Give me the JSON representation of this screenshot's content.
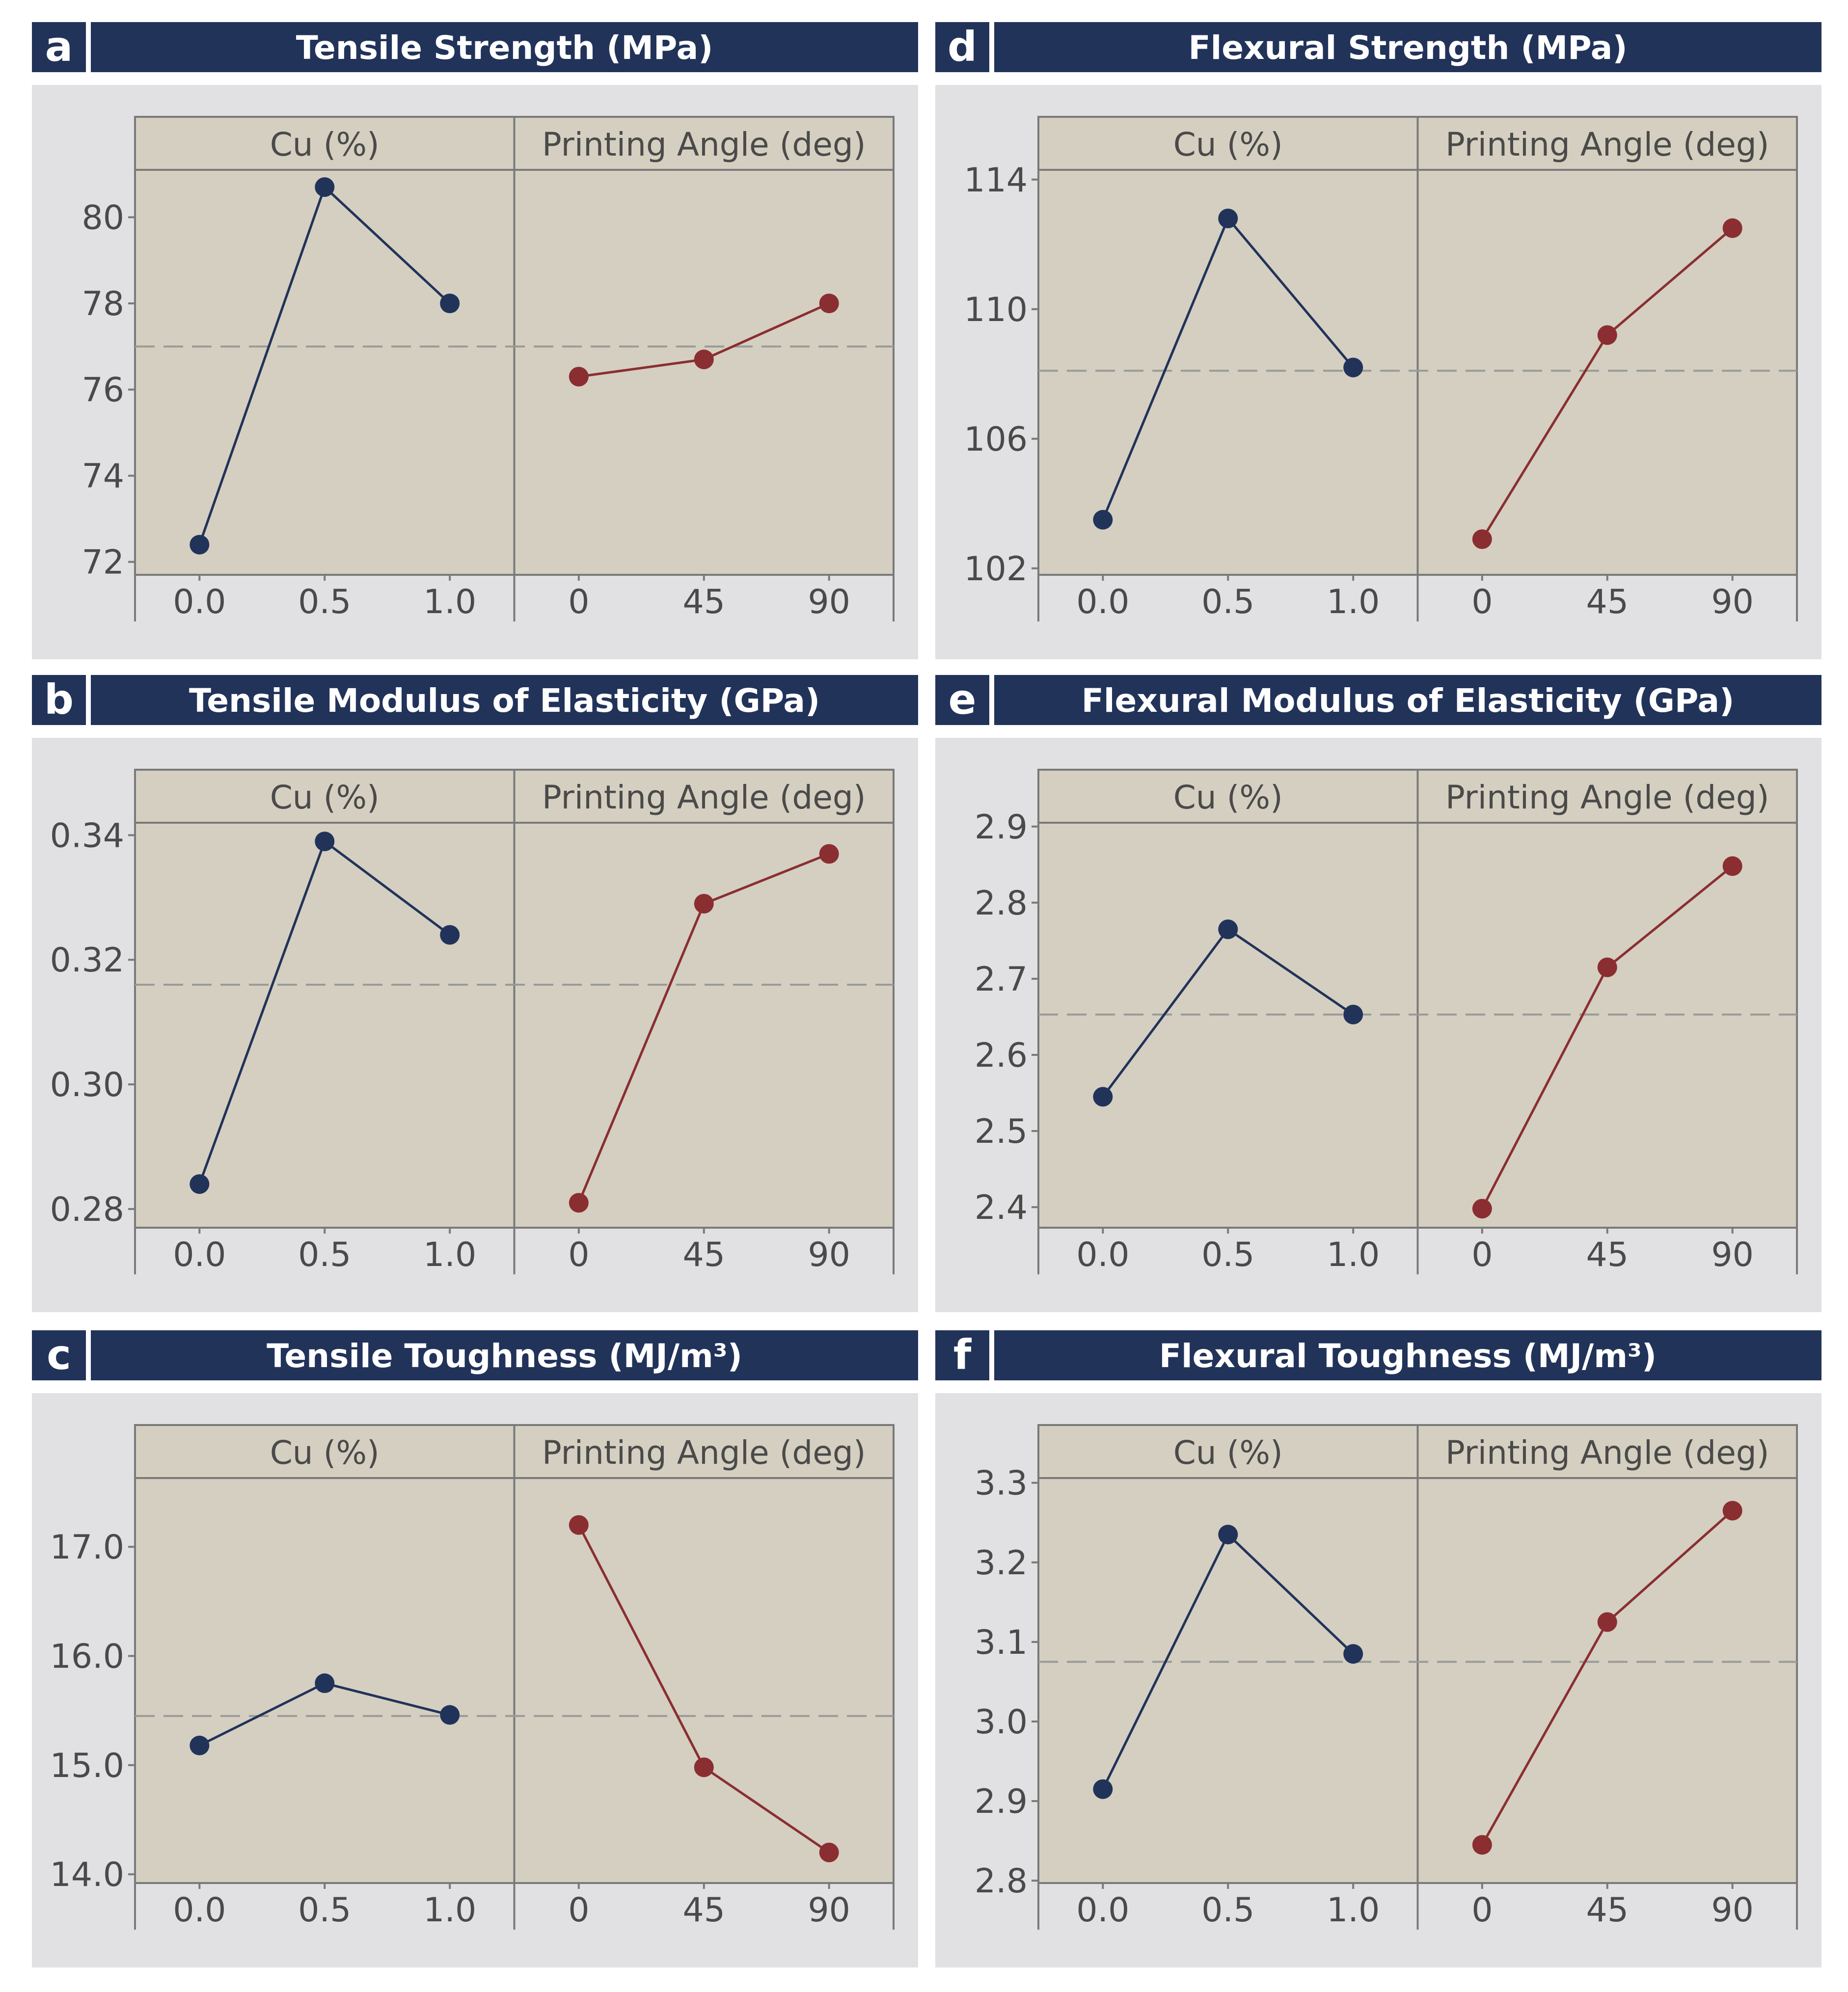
{
  "figure": {
    "colors": {
      "header_bg": "#22335a",
      "header_text": "#ffffff",
      "panel_bg": "#e1e1e3",
      "plot_bg": "#d4cfc0",
      "frame": "#7a7a7a",
      "text": "#4a4a4a",
      "series_cu": "#22335a",
      "series_angle": "#8a2e32",
      "mean_line": "#9a9a9a"
    },
    "strip_labels": [
      "Cu (%)",
      "Printing Angle (deg)"
    ]
  },
  "chart_data": [
    {
      "id": "a",
      "letter": "a",
      "type": "line",
      "title": "Tensile Strength (MPa)",
      "ylim": [
        71.7,
        81.1
      ],
      "yticks": [
        72,
        74,
        76,
        78,
        80
      ],
      "yticklabels": [
        "72",
        "74",
        "76",
        "78",
        "80"
      ],
      "mean": 77.0,
      "series": [
        {
          "name": "Cu (%)",
          "x": [
            "0.0",
            "0.5",
            "1.0"
          ],
          "values": [
            72.4,
            80.7,
            78.0
          ]
        },
        {
          "name": "Printing Angle (deg)",
          "x": [
            "0",
            "45",
            "90"
          ],
          "values": [
            76.3,
            76.7,
            78.0
          ]
        }
      ]
    },
    {
      "id": "d",
      "letter": "d",
      "type": "line",
      "title": "Flexural Strength (MPa)",
      "ylim": [
        101.8,
        114.3
      ],
      "yticks": [
        102,
        106,
        110,
        114
      ],
      "yticklabels": [
        "102",
        "106",
        "110",
        "114"
      ],
      "mean": 108.1,
      "series": [
        {
          "name": "Cu (%)",
          "x": [
            "0.0",
            "0.5",
            "1.0"
          ],
          "values": [
            103.5,
            112.8,
            108.2
          ]
        },
        {
          "name": "Printing Angle (deg)",
          "x": [
            "0",
            "45",
            "90"
          ],
          "values": [
            102.9,
            109.2,
            112.5
          ]
        }
      ]
    },
    {
      "id": "b",
      "letter": "b",
      "type": "line",
      "title": "Tensile Modulus of Elasticity (GPa)",
      "ylim": [
        0.277,
        0.342
      ],
      "yticks": [
        0.28,
        0.3,
        0.32,
        0.34
      ],
      "yticklabels": [
        "0.28",
        "0.30",
        "0.32",
        "0.34"
      ],
      "mean": 0.316,
      "series": [
        {
          "name": "Cu (%)",
          "x": [
            "0.0",
            "0.5",
            "1.0"
          ],
          "values": [
            0.284,
            0.339,
            0.324
          ]
        },
        {
          "name": "Printing Angle (deg)",
          "x": [
            "0",
            "45",
            "90"
          ],
          "values": [
            0.281,
            0.329,
            0.337
          ]
        }
      ]
    },
    {
      "id": "e",
      "letter": "e",
      "type": "line",
      "title": "Flexural Modulus of Elasticity (GPa)",
      "ylim": [
        2.373,
        2.905
      ],
      "yticks": [
        2.4,
        2.5,
        2.6,
        2.7,
        2.8,
        2.9
      ],
      "yticklabels": [
        "2.4",
        "2.5",
        "2.6",
        "2.7",
        "2.8",
        "2.9"
      ],
      "mean": 2.653,
      "series": [
        {
          "name": "Cu (%)",
          "x": [
            "0.0",
            "0.5",
            "1.0"
          ],
          "values": [
            2.545,
            2.765,
            2.653
          ]
        },
        {
          "name": "Printing Angle (deg)",
          "x": [
            "0",
            "45",
            "90"
          ],
          "values": [
            2.398,
            2.715,
            2.848
          ]
        }
      ]
    },
    {
      "id": "c",
      "letter": "c",
      "type": "line",
      "title": "Tensile Toughness (MJ/m³)",
      "ylim": [
        13.92,
        17.63
      ],
      "yticks": [
        14,
        15,
        16,
        17
      ],
      "yticklabels": [
        "14.0",
        "15.0",
        "16.0",
        "17.0"
      ],
      "mean": 15.45,
      "series": [
        {
          "name": "Cu (%)",
          "x": [
            "0.0",
            "0.5",
            "1.0"
          ],
          "values": [
            15.18,
            15.75,
            15.46
          ]
        },
        {
          "name": "Printing Angle (deg)",
          "x": [
            "0",
            "45",
            "90"
          ],
          "values": [
            17.2,
            14.98,
            14.2
          ]
        }
      ]
    },
    {
      "id": "f",
      "letter": "f",
      "type": "line",
      "title": "Flexural Toughness (MJ/m³)",
      "ylim": [
        2.797,
        3.306
      ],
      "yticks": [
        2.8,
        2.9,
        3.0,
        3.1,
        3.2,
        3.3
      ],
      "yticklabels": [
        "2.8",
        "2.9",
        "3.0",
        "3.1",
        "3.2",
        "3.3"
      ],
      "mean": 3.075,
      "series": [
        {
          "name": "Cu (%)",
          "x": [
            "0.0",
            "0.5",
            "1.0"
          ],
          "values": [
            2.915,
            3.235,
            3.085
          ]
        },
        {
          "name": "Printing Angle (deg)",
          "x": [
            "0",
            "45",
            "90"
          ],
          "values": [
            2.845,
            3.125,
            3.265
          ]
        }
      ]
    }
  ]
}
